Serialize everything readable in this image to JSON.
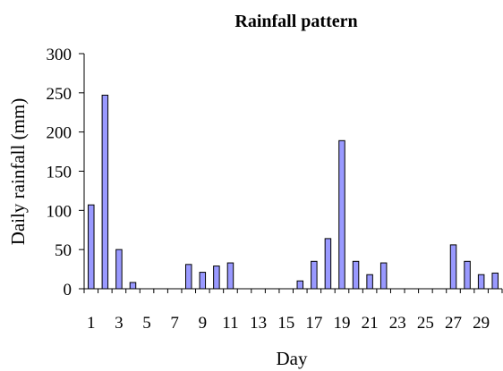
{
  "chart_data": {
    "type": "bar",
    "title": "Rainfall pattern",
    "xlabel": "Day",
    "ylabel": "Daily rainfall (mm)",
    "ylim": [
      0,
      300
    ],
    "yticks": [
      0,
      50,
      100,
      150,
      200,
      250,
      300
    ],
    "categories": [
      1,
      2,
      3,
      4,
      5,
      6,
      7,
      8,
      9,
      10,
      11,
      12,
      13,
      14,
      15,
      16,
      17,
      18,
      19,
      20,
      21,
      22,
      23,
      24,
      25,
      26,
      27,
      28,
      29,
      30
    ],
    "xtick_labels": [
      "1",
      "3",
      "5",
      "7",
      "9",
      "11",
      "13",
      "15",
      "17",
      "19",
      "21",
      "23",
      "25",
      "27",
      "29"
    ],
    "values": [
      107,
      247,
      50,
      8,
      0,
      0,
      0,
      31,
      21,
      29,
      33,
      0,
      0,
      0,
      0,
      10,
      35,
      64,
      189,
      35,
      18,
      33,
      0,
      0,
      0,
      0,
      56,
      35,
      18,
      20
    ],
    "bar_color": "#9999ff",
    "grid": false,
    "legend": "none"
  }
}
